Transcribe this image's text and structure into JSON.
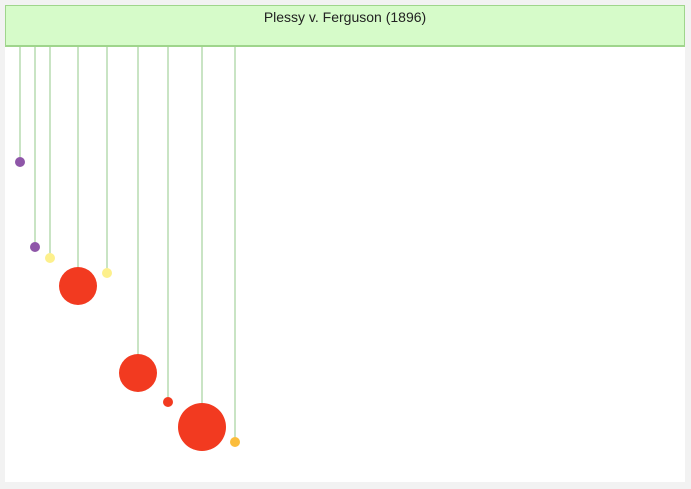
{
  "header": {
    "title": "Plessy v. Ferguson (1896)",
    "background": "#d6fbc9",
    "border": "#9fd58c"
  },
  "stems": {
    "color": "#93c88a"
  },
  "nodes": [
    {
      "color": "#8e56a8",
      "size": "small"
    },
    {
      "color": "#8e56a8",
      "size": "small"
    },
    {
      "color": "#fdf08c",
      "size": "small"
    },
    {
      "color": "#f23a20",
      "size": "large"
    },
    {
      "color": "#fdf08c",
      "size": "small"
    },
    {
      "color": "#f23a20",
      "size": "large"
    },
    {
      "color": "#f23a20",
      "size": "small"
    },
    {
      "color": "#f23a20",
      "size": "x-large"
    },
    {
      "color": "#fbbd3c",
      "size": "small"
    }
  ]
}
